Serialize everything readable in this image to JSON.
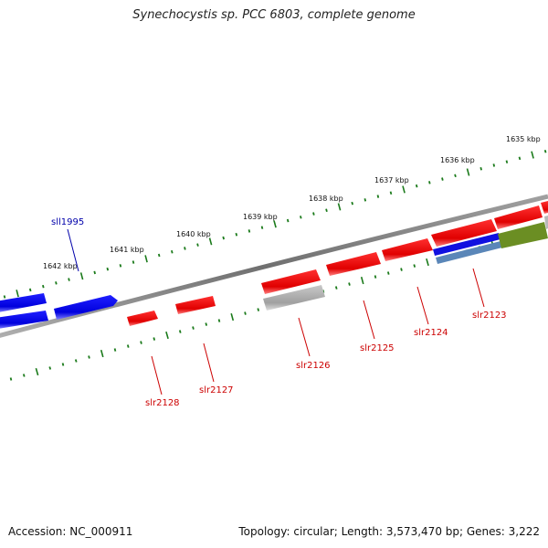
{
  "title": "Synechocystis sp. PCC 6803, complete genome",
  "footer": {
    "accession": "Accession: NC_000911",
    "summary": "Topology: circular; Length: 3,573,470 bp; Genes: 3,222"
  },
  "colors": {
    "forward_gene": "#ff0000",
    "reverse_gene": "#0000ff",
    "label_forward": "#cc0000",
    "label_reverse": "#0000aa",
    "tick": "#1a7a1a",
    "backbone": "#808080",
    "other_track": "#6b8e23",
    "gray_gene": "#b0b0b0"
  },
  "scale_labels": [
    "1635 kbp",
    "1636 kbp",
    "1637 kbp",
    "1638 kbp",
    "1639 kbp",
    "1640 kbp",
    "1641 kbp",
    "1642 kbp"
  ],
  "gene_labels": [
    {
      "text": "sll1995",
      "strand": "reverse"
    },
    {
      "text": "slr2123",
      "strand": "forward"
    },
    {
      "text": "slr2124",
      "strand": "forward"
    },
    {
      "text": "slr2125",
      "strand": "forward"
    },
    {
      "text": "slr2126",
      "strand": "forward"
    },
    {
      "text": "slr2127",
      "strand": "forward"
    },
    {
      "text": "slr2128",
      "strand": "forward"
    }
  ]
}
